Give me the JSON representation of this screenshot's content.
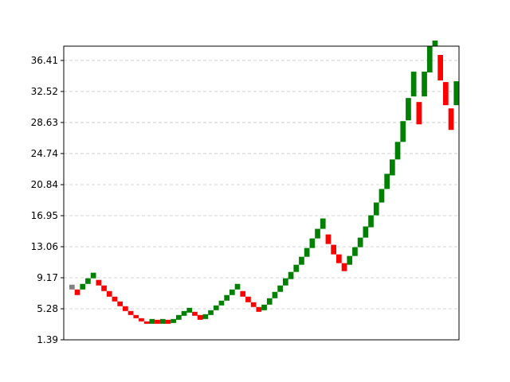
{
  "chart_data": {
    "type": "bar",
    "chart_kind": "renko",
    "title": "",
    "xlabel": "",
    "ylabel": "",
    "x_ticks": [],
    "y_ticks": [
      "1.39",
      "5.28",
      "9.17",
      "13.06",
      "16.95",
      "20.84",
      "24.74",
      "28.63",
      "32.52",
      "36.41"
    ],
    "ylim": [
      1.39,
      38.2
    ],
    "grid": "horizontal dashed",
    "legend": "none",
    "colors": {
      "up": "#008000",
      "down": "#ff0000",
      "neutral": "#808080"
    },
    "series": [
      {
        "values": [
          {
            "open": 7.7,
            "close": 8.3,
            "dir": "neutral"
          },
          {
            "open": 7.7,
            "close": 7.0,
            "dir": "down"
          },
          {
            "open": 7.7,
            "close": 8.4,
            "dir": "up"
          },
          {
            "open": 8.4,
            "close": 9.1,
            "dir": "up"
          },
          {
            "open": 9.1,
            "close": 9.8,
            "dir": "up"
          },
          {
            "open": 8.9,
            "close": 8.2,
            "dir": "down"
          },
          {
            "open": 8.2,
            "close": 7.5,
            "dir": "down"
          },
          {
            "open": 7.5,
            "close": 6.8,
            "dir": "down"
          },
          {
            "open": 6.8,
            "close": 6.2,
            "dir": "down"
          },
          {
            "open": 6.2,
            "close": 5.6,
            "dir": "down"
          },
          {
            "open": 5.6,
            "close": 5.0,
            "dir": "down"
          },
          {
            "open": 5.0,
            "close": 4.5,
            "dir": "down"
          },
          {
            "open": 4.5,
            "close": 4.1,
            "dir": "down"
          },
          {
            "open": 4.1,
            "close": 3.7,
            "dir": "down"
          },
          {
            "open": 3.7,
            "close": 3.4,
            "dir": "down"
          },
          {
            "open": 3.4,
            "close": 4.0,
            "dir": "up"
          },
          {
            "open": 3.9,
            "close": 3.4,
            "dir": "down"
          },
          {
            "open": 3.4,
            "close": 4.0,
            "dir": "up"
          },
          {
            "open": 3.9,
            "close": 3.4,
            "dir": "down"
          },
          {
            "open": 3.5,
            "close": 4.0,
            "dir": "up"
          },
          {
            "open": 3.9,
            "close": 4.5,
            "dir": "up"
          },
          {
            "open": 4.4,
            "close": 5.0,
            "dir": "up"
          },
          {
            "open": 4.8,
            "close": 5.4,
            "dir": "up"
          },
          {
            "open": 4.9,
            "close": 4.4,
            "dir": "down"
          },
          {
            "open": 4.5,
            "close": 3.9,
            "dir": "down"
          },
          {
            "open": 4.0,
            "close": 4.6,
            "dir": "up"
          },
          {
            "open": 4.5,
            "close": 5.1,
            "dir": "up"
          },
          {
            "open": 5.1,
            "close": 5.7,
            "dir": "up"
          },
          {
            "open": 5.7,
            "close": 6.3,
            "dir": "up"
          },
          {
            "open": 6.3,
            "close": 7.0,
            "dir": "up"
          },
          {
            "open": 7.0,
            "close": 7.7,
            "dir": "up"
          },
          {
            "open": 7.7,
            "close": 8.4,
            "dir": "up"
          },
          {
            "open": 7.5,
            "close": 6.8,
            "dir": "down"
          },
          {
            "open": 6.8,
            "close": 6.1,
            "dir": "down"
          },
          {
            "open": 6.1,
            "close": 5.5,
            "dir": "down"
          },
          {
            "open": 5.5,
            "close": 4.9,
            "dir": "down"
          },
          {
            "open": 5.1,
            "close": 5.8,
            "dir": "up"
          },
          {
            "open": 5.8,
            "close": 6.6,
            "dir": "up"
          },
          {
            "open": 6.6,
            "close": 7.4,
            "dir": "up"
          },
          {
            "open": 7.4,
            "close": 8.2,
            "dir": "up"
          },
          {
            "open": 8.2,
            "close": 9.1,
            "dir": "up"
          },
          {
            "open": 9.0,
            "close": 9.9,
            "dir": "up"
          },
          {
            "open": 9.9,
            "close": 10.8,
            "dir": "up"
          },
          {
            "open": 10.8,
            "close": 11.8,
            "dir": "up"
          },
          {
            "open": 11.8,
            "close": 12.9,
            "dir": "up"
          },
          {
            "open": 12.9,
            "close": 14.1,
            "dir": "up"
          },
          {
            "open": 14.1,
            "close": 15.3,
            "dir": "up"
          },
          {
            "open": 15.3,
            "close": 16.6,
            "dir": "up"
          },
          {
            "open": 14.6,
            "close": 13.4,
            "dir": "down"
          },
          {
            "open": 13.3,
            "close": 12.1,
            "dir": "down"
          },
          {
            "open": 12.1,
            "close": 11.0,
            "dir": "down"
          },
          {
            "open": 11.0,
            "close": 10.0,
            "dir": "down"
          },
          {
            "open": 10.8,
            "close": 11.9,
            "dir": "up"
          },
          {
            "open": 11.9,
            "close": 13.0,
            "dir": "up"
          },
          {
            "open": 13.0,
            "close": 14.2,
            "dir": "up"
          },
          {
            "open": 14.2,
            "close": 15.6,
            "dir": "up"
          },
          {
            "open": 15.5,
            "close": 17.0,
            "dir": "up"
          },
          {
            "open": 17.0,
            "close": 18.6,
            "dir": "up"
          },
          {
            "open": 18.6,
            "close": 20.3,
            "dir": "up"
          },
          {
            "open": 20.3,
            "close": 22.2,
            "dir": "up"
          },
          {
            "open": 22.0,
            "close": 24.0,
            "dir": "up"
          },
          {
            "open": 24.0,
            "close": 26.2,
            "dir": "up"
          },
          {
            "open": 26.2,
            "close": 28.8,
            "dir": "up"
          },
          {
            "open": 28.9,
            "close": 31.7,
            "dir": "up"
          },
          {
            "open": 31.9,
            "close": 35.0,
            "dir": "up"
          },
          {
            "open": 31.2,
            "close": 28.4,
            "dir": "down"
          },
          {
            "open": 31.9,
            "close": 35.0,
            "dir": "up"
          },
          {
            "open": 34.9,
            "close": 38.2,
            "dir": "up"
          },
          {
            "open": 38.2,
            "close": 38.9,
            "dir": "up"
          },
          {
            "open": 37.1,
            "close": 33.9,
            "dir": "down"
          },
          {
            "open": 33.7,
            "close": 30.8,
            "dir": "down"
          },
          {
            "open": 30.4,
            "close": 27.7,
            "dir": "down"
          },
          {
            "open": 30.8,
            "close": 33.8,
            "dir": "up"
          }
        ]
      }
    ]
  }
}
